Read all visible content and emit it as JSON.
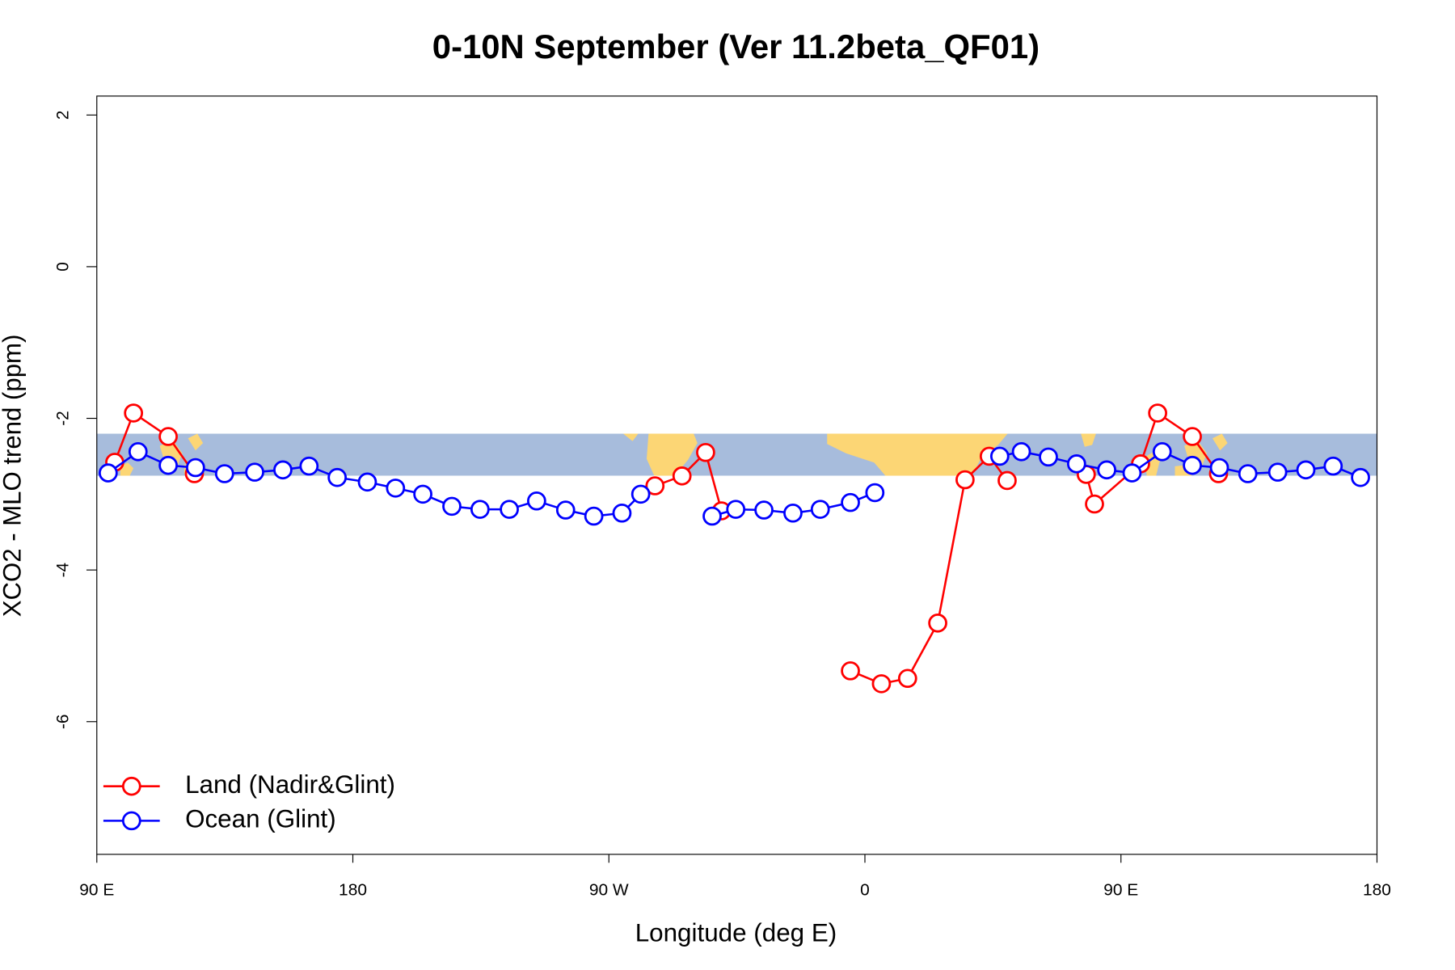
{
  "chart_data": {
    "type": "line",
    "title": "0-10N September (Ver 11.2beta_QF01)",
    "x_label": "Longitude (deg E)",
    "y_label": "XCO2 - MLO trend (ppm)",
    "xlim": [
      90,
      540
    ],
    "ylim": [
      -7.75,
      2.25
    ],
    "xticks": [
      {
        "value": 90,
        "label": "90 E"
      },
      {
        "value": 180,
        "label": "180"
      },
      {
        "value": 270,
        "label": "90 W"
      },
      {
        "value": 360,
        "label": "0"
      },
      {
        "value": 450,
        "label": "90 E"
      },
      {
        "value": 540,
        "label": "180"
      }
    ],
    "yticks": [
      2,
      0,
      -2,
      -4,
      -6
    ],
    "legend": "bottomleft",
    "series": [
      {
        "name": "Land (Nadir&Glint)",
        "color": "#ff0000",
        "x": [
          96.3,
          102.9,
          115.1,
          124.3,
          null,
          286.2,
          295.7,
          304.0,
          309.6,
          null,
          354.9,
          365.8,
          375.0,
          385.6,
          395.2,
          403.7,
          410.0,
          null,
          437.8,
          440.7,
          456.9,
          462.9,
          475.1,
          484.3
        ],
        "values": [
          -2.58,
          -1.93,
          -2.24,
          -2.73,
          null,
          -2.89,
          -2.76,
          -2.45,
          -3.22,
          null,
          -5.33,
          -5.5,
          -5.43,
          -4.7,
          -2.81,
          -2.5,
          -2.82,
          null,
          -2.74,
          -3.13,
          -2.6,
          -1.93,
          -2.24,
          -2.73
        ]
      },
      {
        "name": "Ocean (Glint)",
        "color": "#0000ff",
        "x": [
          94.0,
          104.5,
          115.1,
          124.7,
          134.9,
          145.5,
          155.4,
          164.6,
          174.5,
          185.1,
          195.0,
          204.6,
          214.8,
          224.7,
          235.0,
          244.6,
          254.8,
          264.7,
          274.6,
          281.2,
          null,
          306.3,
          314.6,
          324.5,
          334.7,
          344.3,
          354.9,
          363.5,
          null,
          407.4,
          415.0,
          424.5,
          434.4,
          445.0,
          453.9,
          464.5,
          475.1,
          484.6,
          494.6,
          505.1,
          515.0,
          524.6,
          534.2
        ],
        "values": [
          -2.72,
          -2.44,
          -2.62,
          -2.65,
          -2.73,
          -2.71,
          -2.68,
          -2.63,
          -2.78,
          -2.84,
          -2.92,
          -3.0,
          -3.16,
          -3.2,
          -3.2,
          -3.09,
          -3.21,
          -3.29,
          -3.25,
          -3.0,
          null,
          -3.29,
          -3.2,
          -3.21,
          -3.25,
          -3.2,
          -3.11,
          -2.98,
          null,
          -2.5,
          -2.44,
          -2.51,
          -2.6,
          -2.68,
          -2.72,
          -2.44,
          -2.62,
          -2.65,
          -2.73,
          -2.71,
          -2.68,
          -2.63,
          -2.78
        ]
      }
    ]
  }
}
